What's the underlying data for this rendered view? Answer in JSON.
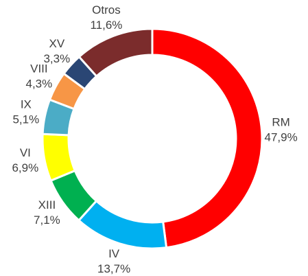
{
  "chart_data": {
    "type": "donut",
    "categories": [
      "RM",
      "IV",
      "XIII",
      "VI",
      "IX",
      "VIII",
      "XV",
      "Otros"
    ],
    "values": [
      47.9,
      13.7,
      7.1,
      6.9,
      5.1,
      4.3,
      3.3,
      11.6
    ],
    "value_labels": [
      "47,9%",
      "13,7%",
      "7,1%",
      "6,9%",
      "5,1%",
      "4,3%",
      "3,3%",
      "11,6%"
    ],
    "colors": [
      "#ff0000",
      "#00b0f0",
      "#00b050",
      "#ffff00",
      "#4bacc6",
      "#f79646",
      "#2a4674",
      "#7b2c2c"
    ]
  }
}
